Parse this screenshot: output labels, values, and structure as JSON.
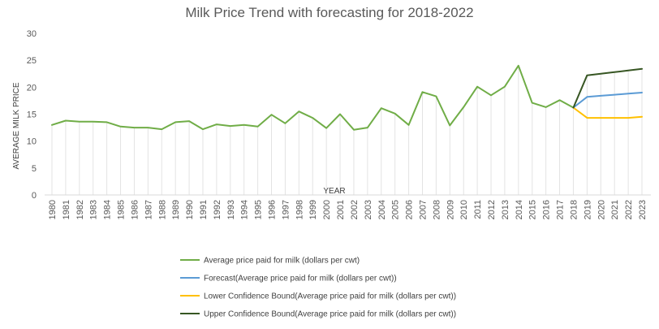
{
  "chart_data": {
    "type": "line",
    "title": "Milk Price Trend with forecasting for 2018-2022",
    "xlabel": "YEAR",
    "ylabel": "AVERAGE MILK PRICE",
    "ylim": [
      0,
      30
    ],
    "yticks": [
      0,
      5,
      10,
      15,
      20,
      25,
      30
    ],
    "grid": "vertical drop lines",
    "legend_position": "bottom",
    "categories": [
      "1980",
      "1981",
      "1982",
      "1983",
      "1984",
      "1985",
      "1986",
      "1987",
      "1988",
      "1989",
      "1990",
      "1991",
      "1992",
      "1993",
      "1994",
      "1995",
      "1996",
      "1997",
      "1998",
      "1999",
      "2000",
      "2001",
      "2002",
      "2003",
      "2004",
      "2005",
      "2006",
      "2007",
      "2008",
      "2009",
      "2010",
      "2011",
      "2012",
      "2013",
      "2014",
      "2015",
      "2016",
      "2017",
      "2018",
      "2019",
      "2020",
      "2021",
      "2022",
      "2023"
    ],
    "series": [
      {
        "name": "Average price paid for milk (dollars per cwt)",
        "color": "#70ad47",
        "values": [
          13.0,
          13.8,
          13.6,
          13.6,
          13.5,
          12.7,
          12.5,
          12.5,
          12.2,
          13.5,
          13.7,
          12.2,
          13.1,
          12.8,
          13.0,
          12.7,
          14.9,
          13.3,
          15.5,
          14.3,
          12.4,
          15.0,
          12.1,
          12.5,
          16.1,
          15.1,
          13.0,
          19.1,
          18.3,
          12.9,
          16.3,
          20.1,
          18.5,
          20.1,
          24.0,
          17.1,
          16.3,
          17.6,
          16.2,
          null,
          null,
          null,
          null,
          null
        ]
      },
      {
        "name": "Forecast(Average price paid for milk (dollars per cwt))",
        "color": "#5b9bd5",
        "values": [
          null,
          null,
          null,
          null,
          null,
          null,
          null,
          null,
          null,
          null,
          null,
          null,
          null,
          null,
          null,
          null,
          null,
          null,
          null,
          null,
          null,
          null,
          null,
          null,
          null,
          null,
          null,
          null,
          null,
          null,
          null,
          null,
          null,
          null,
          null,
          null,
          null,
          null,
          16.2,
          18.2,
          18.4,
          18.6,
          18.8,
          19.0
        ]
      },
      {
        "name": "Lower Confidence Bound(Average price paid for milk (dollars per cwt))",
        "color": "#ffc000",
        "values": [
          null,
          null,
          null,
          null,
          null,
          null,
          null,
          null,
          null,
          null,
          null,
          null,
          null,
          null,
          null,
          null,
          null,
          null,
          null,
          null,
          null,
          null,
          null,
          null,
          null,
          null,
          null,
          null,
          null,
          null,
          null,
          null,
          null,
          null,
          null,
          null,
          null,
          null,
          16.2,
          14.3,
          14.3,
          14.3,
          14.3,
          14.5
        ]
      },
      {
        "name": "Upper Confidence Bound(Average price paid for milk (dollars per cwt))",
        "color": "#375623",
        "values": [
          null,
          null,
          null,
          null,
          null,
          null,
          null,
          null,
          null,
          null,
          null,
          null,
          null,
          null,
          null,
          null,
          null,
          null,
          null,
          null,
          null,
          null,
          null,
          null,
          null,
          null,
          null,
          null,
          null,
          null,
          null,
          null,
          null,
          null,
          null,
          null,
          null,
          null,
          16.2,
          22.2,
          22.5,
          22.8,
          23.1,
          23.4
        ]
      }
    ]
  }
}
